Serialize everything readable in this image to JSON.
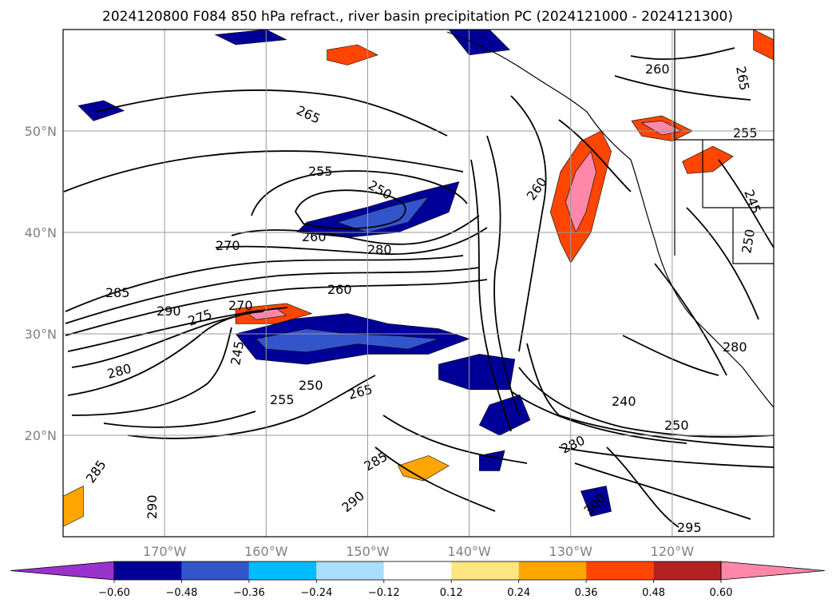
{
  "title": "2024120800 F084 850 hPa refract., river basin precipitation PC (2024121000 - 2024121300)",
  "chart_data": {
    "type": "map",
    "lon_range": [
      -180,
      -110
    ],
    "lat_range": [
      10,
      60
    ],
    "lon_ticks": [
      {
        "value": -170,
        "label": "170°W"
      },
      {
        "value": -160,
        "label": "160°W"
      },
      {
        "value": -150,
        "label": "150°W"
      },
      {
        "value": -140,
        "label": "140°W"
      },
      {
        "value": -130,
        "label": "130°W"
      },
      {
        "value": -120,
        "label": "120°W"
      }
    ],
    "lat_ticks": [
      {
        "value": 20,
        "label": "20°N"
      },
      {
        "value": 30,
        "label": "30°N"
      },
      {
        "value": 40,
        "label": "40°N"
      },
      {
        "value": 50,
        "label": "50°N"
      }
    ],
    "grid": true,
    "colorbar": {
      "extend": "both",
      "colors": [
        "#9933cc",
        "#000099",
        "#3355cc",
        "#00bbff",
        "#aaddff",
        "#ffffff",
        "#ffe680",
        "#ffa500",
        "#ff4500",
        "#b22222",
        "#ff88aa"
      ],
      "tick_labels": [
        "−0.60",
        "−0.48",
        "−0.36",
        "−0.24",
        "−0.12",
        "0.12",
        "0.24",
        "0.36",
        "0.48",
        "0.60"
      ]
    },
    "contour_labels": [
      {
        "text": "265",
        "lon": -161.5,
        "lat": 51.5
      },
      {
        "text": "260",
        "lon": -117.0,
        "lat": 56.0
      },
      {
        "text": "265",
        "lon": -113.0,
        "lat": 56.5
      },
      {
        "text": "255",
        "lon": -157.5,
        "lat": 45.5
      },
      {
        "text": "250",
        "lon": -148.5,
        "lat": 43.5
      },
      {
        "text": "260",
        "lon": -132.5,
        "lat": 44.0
      },
      {
        "text": "255",
        "lon": -114.5,
        "lat": 49.5
      },
      {
        "text": "260",
        "lon": -159.5,
        "lat": 39.5
      },
      {
        "text": "280",
        "lon": -148.5,
        "lat": 38.5
      },
      {
        "text": "270",
        "lon": -174.0,
        "lat": 38.5
      },
      {
        "text": "285",
        "lon": -177.0,
        "lat": 34.0
      },
      {
        "text": "260",
        "lon": -153.5,
        "lat": 34.5
      },
      {
        "text": "290",
        "lon": -174.0,
        "lat": 32.0
      },
      {
        "text": "275",
        "lon": -171.0,
        "lat": 31.5
      },
      {
        "text": "270",
        "lon": -166.5,
        "lat": 32.5
      },
      {
        "text": "245",
        "lon": -165.0,
        "lat": 27.5
      },
      {
        "text": "280",
        "lon": -177.0,
        "lat": 25.5
      },
      {
        "text": "250",
        "lon": -156.5,
        "lat": 24.5
      },
      {
        "text": "265",
        "lon": -150.5,
        "lat": 23.5
      },
      {
        "text": "255",
        "lon": -163.0,
        "lat": 23.0
      },
      {
        "text": "240",
        "lon": -124.0,
        "lat": 23.0
      },
      {
        "text": "250",
        "lon": -120.5,
        "lat": 21.0
      },
      {
        "text": "280",
        "lon": -129.0,
        "lat": 19.0
      },
      {
        "text": "285",
        "lon": -178.5,
        "lat": 15.0
      },
      {
        "text": "285",
        "lon": -147.0,
        "lat": 16.5
      },
      {
        "text": "290",
        "lon": -148.5,
        "lat": 13.5
      },
      {
        "text": "290",
        "lon": -176.0,
        "lat": 13.0
      },
      {
        "text": "300",
        "lon": -127.5,
        "lat": 12.5
      },
      {
        "text": "295",
        "lon": -120.5,
        "lat": 11.0
      },
      {
        "text": "245",
        "lon": -113.0,
        "lat": 46.5
      },
      {
        "text": "250",
        "lon": -114.5,
        "lat": 36.0
      },
      {
        "text": "280",
        "lon": -115.0,
        "lat": 29.0
      }
    ],
    "contour_label_geo": [],
    "shaded_regions": [
      {
        "class": 1,
        "points": [
          [
            -156,
            41
          ],
          [
            -150,
            42.5
          ],
          [
            -145,
            44
          ],
          [
            -141,
            45
          ],
          [
            -142,
            42
          ],
          [
            -147,
            40
          ],
          [
            -152,
            39.5
          ],
          [
            -157,
            40
          ]
        ]
      },
      {
        "class": 2,
        "points": [
          [
            -153,
            41
          ],
          [
            -148,
            42.5
          ],
          [
            -144,
            43.5
          ],
          [
            -146,
            41
          ],
          [
            -150,
            40
          ]
        ]
      },
      {
        "class": 1,
        "points": [
          [
            -163,
            30
          ],
          [
            -157,
            31.5
          ],
          [
            -152,
            32
          ],
          [
            -148,
            31
          ],
          [
            -143,
            30.5
          ],
          [
            -140,
            29.5
          ],
          [
            -144,
            28
          ],
          [
            -150,
            28
          ],
          [
            -156,
            27
          ],
          [
            -161,
            27.5
          ]
        ]
      },
      {
        "class": 2,
        "points": [
          [
            -161,
            29.5
          ],
          [
            -156,
            30.5
          ],
          [
            -152,
            30
          ],
          [
            -147,
            29.8
          ],
          [
            -143,
            29.5
          ],
          [
            -146,
            28.5
          ],
          [
            -151,
            29
          ],
          [
            -156,
            28.2
          ],
          [
            -160,
            28.5
          ]
        ]
      },
      {
        "class": 0,
        "points": [
          [
            -142,
            26.5
          ],
          [
            -139,
            27.5
          ],
          [
            -136,
            27
          ],
          [
            -137,
            25.5
          ],
          [
            -140,
            25.5
          ]
        ]
      },
      {
        "class": 1,
        "points": [
          [
            -143,
            27
          ],
          [
            -139,
            28
          ],
          [
            -135.5,
            27.5
          ],
          [
            -136,
            24.5
          ],
          [
            -140,
            24.5
          ],
          [
            -143,
            25.5
          ]
        ]
      },
      {
        "class": 1,
        "points": [
          [
            -138,
            23
          ],
          [
            -135,
            24
          ],
          [
            -134,
            21.5
          ],
          [
            -137,
            20
          ],
          [
            -139,
            21
          ]
        ]
      },
      {
        "class": 1,
        "points": [
          [
            -178.5,
            52.5
          ],
          [
            -176,
            53
          ],
          [
            -174,
            52
          ],
          [
            -177,
            51
          ]
        ]
      },
      {
        "class": 1,
        "points": [
          [
            -165,
            59.5
          ],
          [
            -160,
            60
          ],
          [
            -158,
            59
          ],
          [
            -163,
            58.5
          ]
        ]
      },
      {
        "class": 1,
        "points": [
          [
            -142,
            60
          ],
          [
            -138,
            60
          ],
          [
            -136,
            58
          ],
          [
            -140,
            57.5
          ]
        ]
      },
      {
        "class": 1,
        "points": [
          [
            -129,
            14.5
          ],
          [
            -126.5,
            15
          ],
          [
            -126,
            12.5
          ],
          [
            -128,
            12
          ]
        ]
      },
      {
        "class": 1,
        "points": [
          [
            -139,
            18
          ],
          [
            -136.5,
            18.5
          ],
          [
            -137,
            16.5
          ],
          [
            -139,
            16.5
          ]
        ]
      },
      {
        "class": 8,
        "points": [
          [
            -163,
            32.5
          ],
          [
            -158,
            33
          ],
          [
            -155.5,
            32
          ],
          [
            -159,
            31
          ],
          [
            -163,
            31
          ]
        ]
      },
      {
        "class": 10,
        "points": [
          [
            -162,
            32.2
          ],
          [
            -159,
            32.5
          ],
          [
            -158,
            31.8
          ],
          [
            -161,
            31.4
          ]
        ]
      },
      {
        "class": 8,
        "points": [
          [
            -132,
            42
          ],
          [
            -131,
            46
          ],
          [
            -129,
            49
          ],
          [
            -127,
            50
          ],
          [
            -126,
            48
          ],
          [
            -127,
            44
          ],
          [
            -128,
            40
          ],
          [
            -130,
            37
          ],
          [
            -131,
            39
          ]
        ]
      },
      {
        "class": 10,
        "points": [
          [
            -130.5,
            43
          ],
          [
            -129.5,
            46
          ],
          [
            -128,
            48
          ],
          [
            -127.5,
            46
          ],
          [
            -128.5,
            42
          ],
          [
            -129.5,
            40
          ]
        ]
      },
      {
        "class": 8,
        "points": [
          [
            -124,
            51
          ],
          [
            -121,
            51.5
          ],
          [
            -118,
            50
          ],
          [
            -120,
            49
          ],
          [
            -123,
            49.5
          ]
        ]
      },
      {
        "class": 10,
        "points": [
          [
            -123,
            50.8
          ],
          [
            -121,
            51
          ],
          [
            -119,
            50
          ],
          [
            -121,
            49.6
          ]
        ]
      },
      {
        "class": 8,
        "points": [
          [
            -119,
            47
          ],
          [
            -116,
            48.5
          ],
          [
            -114,
            47.5
          ],
          [
            -116,
            46
          ],
          [
            -118.5,
            45.8
          ]
        ]
      },
      {
        "class": 8,
        "points": [
          [
            -154,
            58
          ],
          [
            -151,
            58.5
          ],
          [
            -149,
            57.5
          ],
          [
            -152,
            56.5
          ],
          [
            -154,
            57
          ]
        ]
      },
      {
        "class": 8,
        "points": [
          [
            -112,
            60
          ],
          [
            -110,
            59
          ],
          [
            -110,
            57
          ],
          [
            -112,
            58
          ]
        ]
      },
      {
        "class": 7,
        "points": [
          [
            -147,
            17
          ],
          [
            -144,
            18
          ],
          [
            -142,
            17
          ],
          [
            -144.5,
            15.5
          ],
          [
            -146.5,
            16
          ]
        ]
      },
      {
        "class": 7,
        "points": [
          [
            -180,
            14
          ],
          [
            -178,
            15
          ],
          [
            -178,
            12
          ],
          [
            -180,
            11
          ]
        ]
      }
    ]
  }
}
